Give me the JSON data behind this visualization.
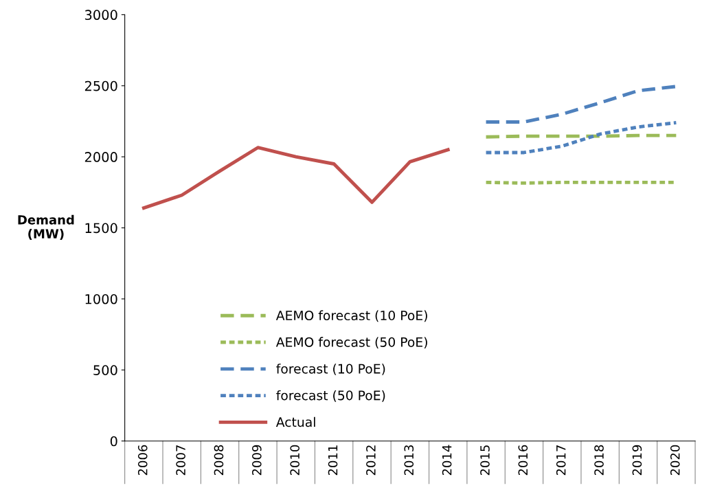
{
  "chart_data": {
    "type": "line",
    "ylabel": "Demand\n(MW)",
    "categories": [
      "2006",
      "2007",
      "2008",
      "2009",
      "2010",
      "2011",
      "2012",
      "2013",
      "2014",
      "2015",
      "2016",
      "2017",
      "2018",
      "2019",
      "2020"
    ],
    "series": [
      {
        "name": "AEMO forecast (10 PoE)",
        "color": "#9bbb59",
        "line_style": "dashed",
        "values": [
          null,
          null,
          null,
          null,
          null,
          null,
          null,
          null,
          null,
          2140,
          2145,
          2145,
          2145,
          2150,
          2150
        ]
      },
      {
        "name": "AEMO forecast (50 PoE)",
        "color": "#9bbb59",
        "line_style": "dotted",
        "values": [
          null,
          null,
          null,
          null,
          null,
          null,
          null,
          null,
          null,
          1820,
          1815,
          1820,
          1820,
          1820,
          1820
        ]
      },
      {
        "name": "forecast (10 PoE)",
        "color": "#4f81bd",
        "line_style": "dashed",
        "values": [
          null,
          null,
          null,
          null,
          null,
          null,
          null,
          null,
          null,
          2245,
          2245,
          2300,
          2380,
          2465,
          2495
        ]
      },
      {
        "name": "forecast (50 PoE)",
        "color": "#4f81bd",
        "line_style": "dotted",
        "values": [
          null,
          null,
          null,
          null,
          null,
          null,
          null,
          null,
          null,
          2030,
          2030,
          2075,
          2160,
          2210,
          2240
        ]
      },
      {
        "name": "Actual",
        "color": "#c0504d",
        "line_style": "solid",
        "values": [
          1640,
          1730,
          1900,
          2065,
          2000,
          1950,
          1680,
          1965,
          2050,
          null,
          null,
          null,
          null,
          null,
          null
        ]
      }
    ],
    "ylim": [
      0,
      3000
    ],
    "yticks": [
      0,
      500,
      1000,
      1500,
      2000,
      2500,
      3000
    ],
    "grid": false,
    "legend": "lower center",
    "marker": "none"
  }
}
